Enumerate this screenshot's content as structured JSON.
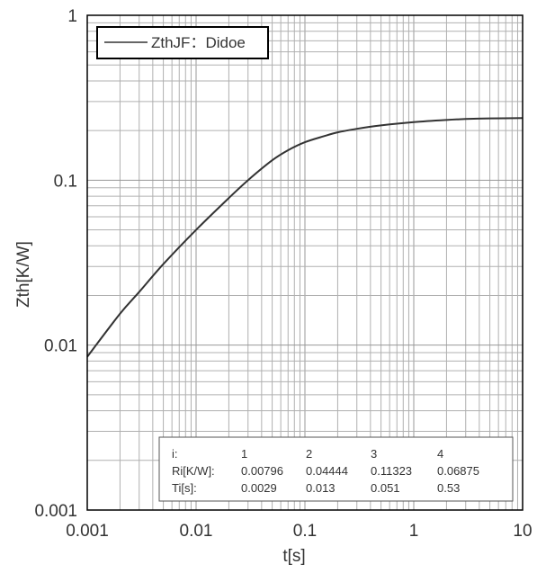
{
  "chart_data": {
    "type": "line",
    "title": "",
    "xlabel": "t[s]",
    "ylabel": "Zth[K/W]",
    "x_scale": "log",
    "y_scale": "log",
    "xlim": [
      0.001,
      10
    ],
    "ylim": [
      0.001,
      1
    ],
    "grid": true,
    "legend_position": "top-left",
    "x_tick_labels": [
      "0.001",
      "0.01",
      "0.1",
      "1",
      "10"
    ],
    "y_tick_labels": [
      "0.001",
      "0.01",
      "0.1",
      "1"
    ],
    "series": [
      {
        "name": "ZthJF：Didoe",
        "color": "#333333",
        "x": [
          0.001,
          0.002,
          0.003,
          0.005,
          0.01,
          0.02,
          0.03,
          0.05,
          0.07,
          0.1,
          0.15,
          0.2,
          0.3,
          0.5,
          1,
          2,
          3,
          5,
          10
        ],
        "y": [
          0.0085,
          0.0155,
          0.021,
          0.031,
          0.05,
          0.078,
          0.1,
          0.132,
          0.152,
          0.17,
          0.185,
          0.195,
          0.205,
          0.215,
          0.225,
          0.232,
          0.235,
          0.237,
          0.238
        ]
      }
    ],
    "parameter_table": {
      "header": [
        "i:",
        "1",
        "2",
        "3",
        "4"
      ],
      "rows": [
        [
          "Ri[K/W]:",
          "0.00796",
          "0.04444",
          "0.11323",
          "0.06875"
        ],
        [
          "Ti[s]:",
          "0.0029",
          "0.013",
          "0.051",
          "0.53"
        ]
      ]
    }
  },
  "colors": {
    "background": "#ffffff",
    "plot_border": "#000000",
    "grid": "#b0b0b0",
    "curve": "#333333",
    "text": "#333333"
  }
}
